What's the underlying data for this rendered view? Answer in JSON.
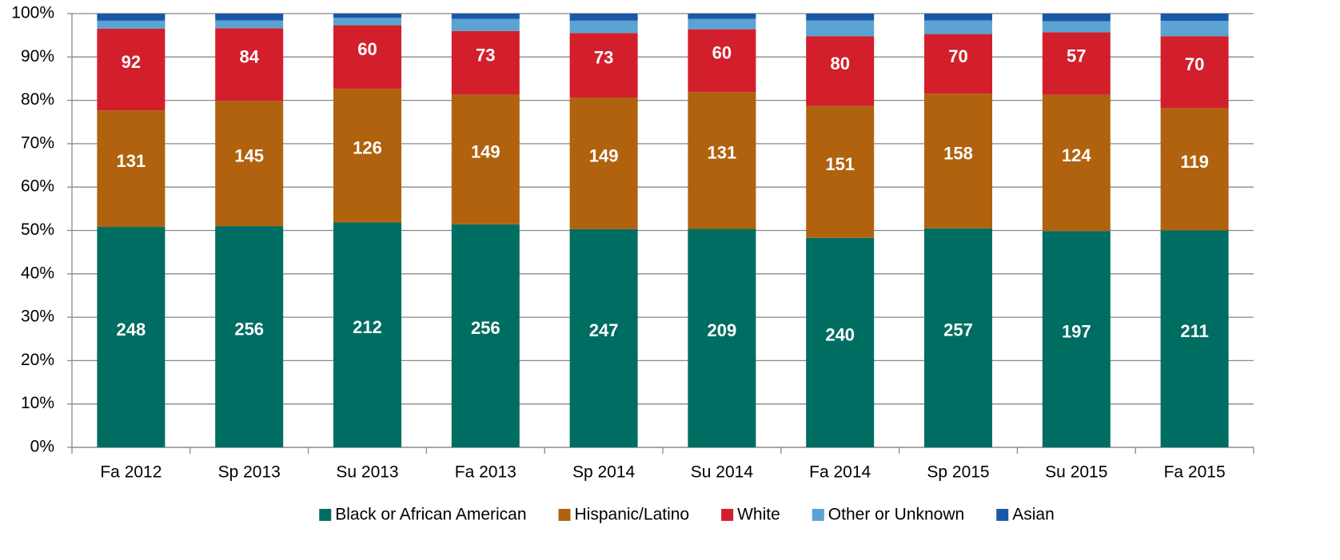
{
  "chart_data": {
    "type": "bar",
    "stacking": "percent",
    "categories": [
      "Fa 2012",
      "Sp 2013",
      "Su 2013",
      "Fa 2013",
      "Sp 2014",
      "Su 2014",
      "Fa 2014",
      "Sp 2015",
      "Su 2015",
      "Fa 2015"
    ],
    "series": [
      {
        "name": "Black or African American",
        "color": "#006d62",
        "show_labels": true,
        "values": [
          248,
          256,
          212,
          256,
          247,
          209,
          240,
          257,
          197,
          211
        ]
      },
      {
        "name": "Hispanic/Latino",
        "color": "#b0620f",
        "show_labels": true,
        "values": [
          131,
          145,
          126,
          149,
          149,
          131,
          151,
          158,
          124,
          119
        ]
      },
      {
        "name": "White",
        "color": "#d21f2b",
        "show_labels": true,
        "values": [
          92,
          84,
          60,
          73,
          73,
          60,
          80,
          70,
          57,
          70
        ]
      },
      {
        "name": "Other or Unknown",
        "color": "#5aa3d2",
        "show_labels": false,
        "values": [
          9,
          9,
          7,
          14,
          14,
          10,
          18,
          16,
          10,
          15
        ]
      },
      {
        "name": "Asian",
        "color": "#1b57a9",
        "show_labels": false,
        "values": [
          8,
          8,
          4,
          6,
          8,
          5,
          8,
          8,
          7,
          7
        ]
      }
    ],
    "ylim": [
      0,
      100
    ],
    "yticks": [
      {
        "value": 0,
        "label": "0%"
      },
      {
        "value": 10,
        "label": "10%"
      },
      {
        "value": 20,
        "label": "20%"
      },
      {
        "value": 30,
        "label": "30%"
      },
      {
        "value": 40,
        "label": "40%"
      },
      {
        "value": 50,
        "label": "50%"
      },
      {
        "value": 60,
        "label": "60%"
      },
      {
        "value": 70,
        "label": "70%"
      },
      {
        "value": 80,
        "label": "80%"
      },
      {
        "value": 90,
        "label": "90%"
      },
      {
        "value": 100,
        "label": "100%"
      }
    ],
    "grid": true,
    "legend": "bottom"
  }
}
